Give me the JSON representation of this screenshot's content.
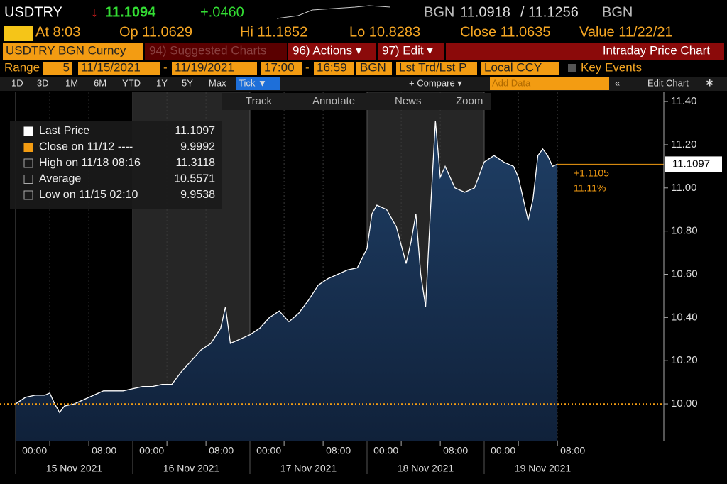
{
  "header": {
    "ticker": "USDTRY",
    "direction": "↓",
    "last": "11.1094",
    "change": "+.0460",
    "bid_source": "BGN",
    "bid": "11.0918",
    "separator": "/",
    "ask": "11.1256",
    "ask_source": "BGN",
    "stats": [
      "At 8:03",
      "Op 11.0629",
      "Hi 11.1852",
      "Lo 10.8283",
      "Close 11.0635",
      "Value 11/22/21"
    ]
  },
  "menu": {
    "security": "USDTRY BGN Curncy",
    "suggested": "94) Suggested Charts",
    "actions": "96) Actions ▾",
    "edit": "97) Edit ▾",
    "title": "Intraday Price Chart"
  },
  "range": {
    "label": "Range",
    "days": "5",
    "start": "11/15/2021",
    "dash": "-",
    "end": "11/19/2021",
    "time_start": "17:00",
    "time_dash": "-",
    "time_end": "16:59",
    "source": "BGN",
    "field": "Lst Trd/Lst P",
    "currency": "Local CCY",
    "events": "Key Events"
  },
  "periods": [
    "1D",
    "3D",
    "1M",
    "6M",
    "YTD",
    "1Y",
    "5Y",
    "Max",
    "Tick ▼"
  ],
  "toolbar": {
    "compare": "+ Compare ▾",
    "add_data": "Add Data",
    "edit_chart": "Edit Chart"
  },
  "chart_tools": [
    "Track",
    "Annotate",
    "News",
    "Zoom"
  ],
  "chart_data": {
    "type": "line",
    "x": [
      0,
      2,
      4,
      6,
      7,
      8,
      9,
      10,
      12,
      14,
      16,
      18,
      20,
      22,
      24,
      26,
      28,
      30,
      32,
      34,
      36,
      38,
      40,
      42,
      43,
      44,
      46,
      48,
      50,
      52,
      54,
      56,
      58,
      60,
      62,
      64,
      66,
      68,
      70,
      72,
      73,
      74,
      76,
      78,
      80,
      81,
      82,
      83,
      84,
      85,
      86,
      87,
      88,
      90,
      92,
      94,
      96,
      98,
      100,
      102,
      103,
      104,
      105,
      106,
      107,
      108,
      109,
      110,
      111
    ],
    "series": [
      {
        "name": "Last Price",
        "color": "#ffffff",
        "values": [
          10.0,
          10.03,
          10.04,
          10.04,
          10.05,
          10.0,
          9.96,
          9.99,
          10.0,
          10.02,
          10.04,
          10.06,
          10.06,
          10.06,
          10.07,
          10.08,
          10.08,
          10.09,
          10.09,
          10.15,
          10.2,
          10.25,
          10.28,
          10.35,
          10.45,
          10.28,
          10.3,
          10.32,
          10.35,
          10.4,
          10.43,
          10.38,
          10.42,
          10.48,
          10.55,
          10.58,
          10.6,
          10.62,
          10.63,
          10.72,
          10.88,
          10.92,
          10.9,
          10.82,
          10.65,
          10.75,
          10.88,
          10.6,
          10.45,
          10.9,
          11.31,
          11.05,
          11.1,
          11.0,
          10.98,
          11.0,
          11.12,
          11.15,
          11.12,
          11.1,
          11.05,
          10.95,
          10.85,
          10.95,
          11.15,
          11.18,
          11.15,
          11.1,
          11.11
        ]
      }
    ],
    "xlim": [
      0,
      120
    ],
    "xticks": [
      {
        "value": 7,
        "label": "00:00"
      },
      {
        "value": 15,
        "label": "08:00"
      },
      {
        "value": 31,
        "label": "00:00"
      },
      {
        "value": 39,
        "label": "08:00"
      },
      {
        "value": 55,
        "label": "00:00"
      },
      {
        "value": 63,
        "label": "08:00"
      },
      {
        "value": 79,
        "label": "00:00"
      },
      {
        "value": 87,
        "label": "08:00"
      },
      {
        "value": 103,
        "label": "00:00"
      },
      {
        "value": 111,
        "label": "08:00"
      }
    ],
    "day_labels": [
      "15 Nov 2021",
      "16 Nov 2021",
      "17 Nov 2021",
      "18 Nov 2021",
      "19 Nov 2021"
    ],
    "ylim": [
      9.826,
      11.443
    ],
    "yticks": [
      {
        "value": 10,
        "label": "10.00"
      },
      {
        "value": 10.2,
        "label": "10.20"
      },
      {
        "value": 10.4,
        "label": "10.40"
      },
      {
        "value": 10.6,
        "label": "10.60"
      },
      {
        "value": 10.8,
        "label": "10.80"
      },
      {
        "value": 11,
        "label": "11.00"
      },
      {
        "value": 11.2,
        "label": "11.20"
      },
      {
        "value": 11.4,
        "label": "11.40"
      }
    ],
    "legend": [
      {
        "label": "Last Price",
        "value": 11.1097
      },
      {
        "label": "Close on 11/12 ----",
        "value": 9.9992
      },
      {
        "label": "High on 11/18 08:16",
        "value": 11.3118
      },
      {
        "label": "Average",
        "value": 10.5571
      },
      {
        "label": "Low on 11/15 02:10",
        "value": 9.9538
      }
    ],
    "change_label": "+1.1105",
    "change_pct": "11.11%"
  }
}
